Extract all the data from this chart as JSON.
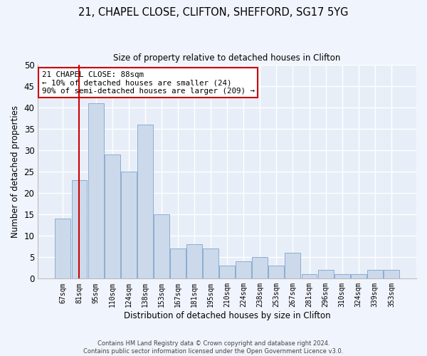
{
  "title1": "21, CHAPEL CLOSE, CLIFTON, SHEFFORD, SG17 5YG",
  "title2": "Size of property relative to detached houses in Clifton",
  "xlabel": "Distribution of detached houses by size in Clifton",
  "ylabel": "Number of detached properties",
  "bar_color": "#ccd9ea",
  "bar_edge_color": "#8aadd4",
  "bg_color": "#e8eef8",
  "grid_color": "#ffffff",
  "fig_bg_color": "#f0f4fc",
  "categories": [
    "67sqm",
    "81sqm",
    "95sqm",
    "110sqm",
    "124sqm",
    "138sqm",
    "153sqm",
    "167sqm",
    "181sqm",
    "195sqm",
    "210sqm",
    "224sqm",
    "238sqm",
    "253sqm",
    "267sqm",
    "281sqm",
    "296sqm",
    "310sqm",
    "324sqm",
    "339sqm",
    "353sqm"
  ],
  "values": [
    14,
    23,
    41,
    29,
    25,
    36,
    15,
    7,
    8,
    7,
    3,
    4,
    5,
    3,
    6,
    1,
    2,
    1,
    1,
    2,
    2
  ],
  "ylim": [
    0,
    50
  ],
  "yticks": [
    0,
    5,
    10,
    15,
    20,
    25,
    30,
    35,
    40,
    45,
    50
  ],
  "vline_x": 1.0,
  "vline_color": "#cc0000",
  "annotation_line1": "21 CHAPEL CLOSE: 88sqm",
  "annotation_line2": "← 10% of detached houses are smaller (24)",
  "annotation_line3": "90% of semi-detached houses are larger (209) →",
  "annotation_box_color": "#ffffff",
  "annotation_box_edge": "#cc0000",
  "footer1": "Contains HM Land Registry data © Crown copyright and database right 2024.",
  "footer2": "Contains public sector information licensed under the Open Government Licence v3.0."
}
